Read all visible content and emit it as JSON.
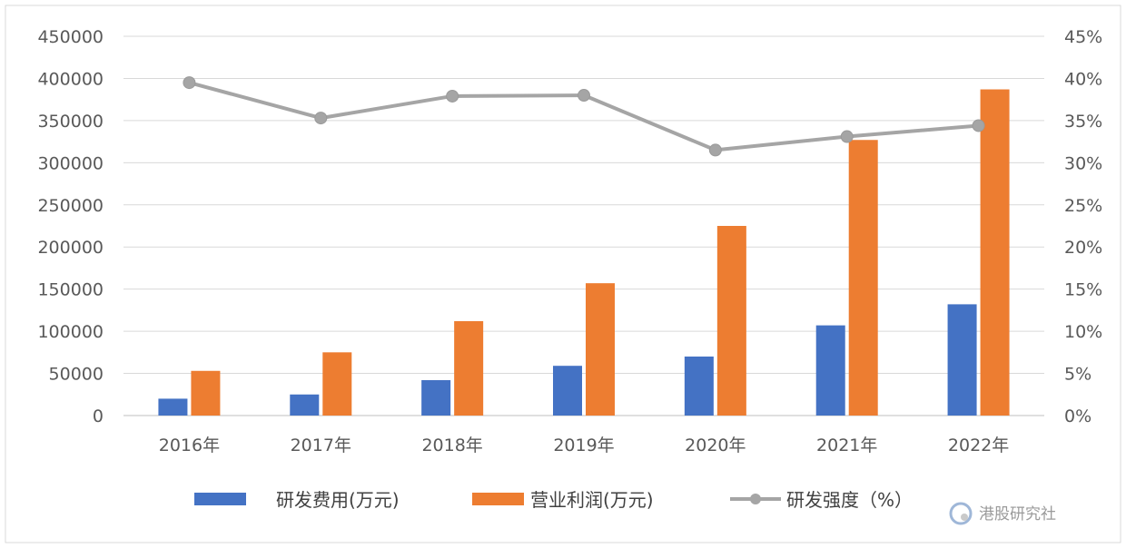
{
  "chart_data": {
    "type": "bar",
    "categories": [
      "2016年",
      "2017年",
      "2018年",
      "2019年",
      "2020年",
      "2021年",
      "2022年"
    ],
    "series": [
      {
        "name": "研发费用(万元)",
        "kind": "bar",
        "axis": "left",
        "color": "#4472C4",
        "values": [
          20000,
          25000,
          42000,
          59000,
          70000,
          107000,
          132000
        ]
      },
      {
        "name": "营业利润(万元)",
        "kind": "bar",
        "axis": "left",
        "color": "#ED7D31",
        "values": [
          53000,
          75000,
          112000,
          157000,
          225000,
          327000,
          387000
        ]
      },
      {
        "name": "研发强度（%）",
        "kind": "line",
        "axis": "right",
        "color": "#A5A5A5",
        "values": [
          39.5,
          35.3,
          37.9,
          38.0,
          31.5,
          33.1,
          34.4
        ]
      }
    ],
    "y_left": {
      "ylim": [
        0,
        450000
      ],
      "ticks": [
        "0",
        "50000",
        "100000",
        "150000",
        "200000",
        "250000",
        "300000",
        "350000",
        "400000",
        "450000"
      ]
    },
    "y_right": {
      "ylim": [
        0,
        45
      ],
      "ticks": [
        "0%",
        "5%",
        "10%",
        "15%",
        "20%",
        "25%",
        "30%",
        "35%",
        "40%",
        "45%"
      ]
    },
    "grid": true,
    "legend_position": "bottom"
  },
  "legend": {
    "items": [
      "研发费用(万元)",
      "营业利润(万元)",
      "研发强度（%）"
    ]
  },
  "watermark": "港股研究社"
}
